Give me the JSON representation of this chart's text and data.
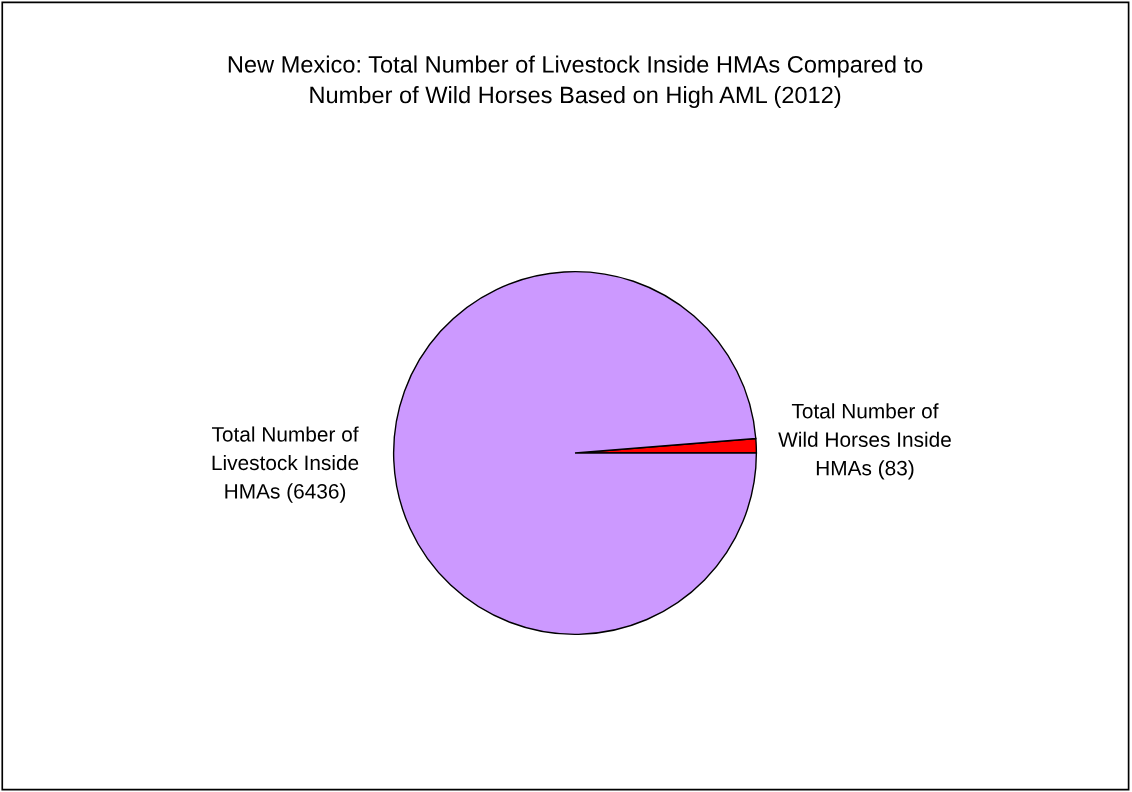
{
  "chart_data": {
    "type": "pie",
    "title": "New Mexico: Total Number of Livestock Inside HMAs Compared to Number of Wild Horses Based on High AML (2012)",
    "categories": [
      "Total Number of Wild Horses Inside HMAs (83)",
      "Total Number of Livestock Inside HMAs (6436)"
    ],
    "values": [
      83,
      6436
    ],
    "colors": [
      "#ff0000",
      "#cc99ff"
    ]
  }
}
